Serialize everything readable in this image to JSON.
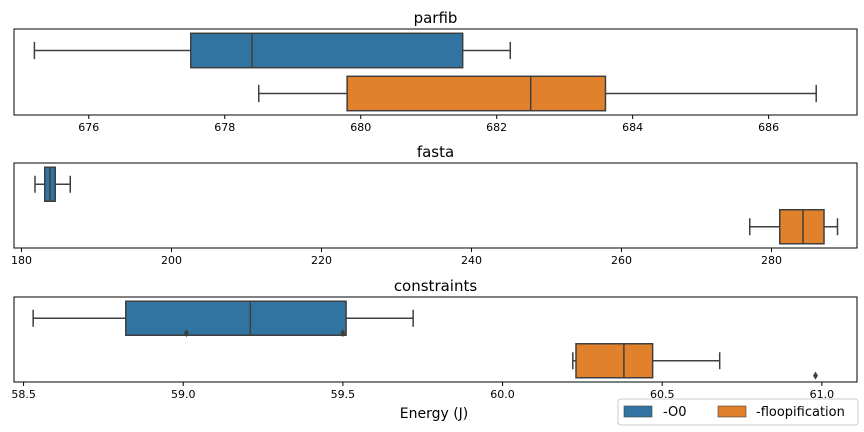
{
  "colors": {
    "series_0": "#3274a1",
    "series_1": "#e1812c",
    "line": "#3f3f3f",
    "frame": "#000000"
  },
  "chart_data": [
    {
      "type": "boxplot",
      "orientation": "horizontal",
      "title": "parfib",
      "xlim": [
        674.9,
        687.3
      ],
      "xticks": [
        676,
        678,
        680,
        682,
        684,
        686
      ],
      "xlabel": "",
      "boxes": [
        {
          "series": "-O0",
          "whislo": 675.2,
          "q1": 677.5,
          "med": 678.4,
          "q3": 681.5,
          "whishi": 682.2,
          "fliers": []
        },
        {
          "series": "-floopification",
          "whislo": 678.5,
          "q1": 679.8,
          "med": 682.5,
          "q3": 683.6,
          "whishi": 686.7,
          "fliers": []
        }
      ]
    },
    {
      "type": "boxplot",
      "orientation": "horizontal",
      "title": "fasta",
      "xlim": [
        179.0,
        291.4
      ],
      "xticks": [
        180,
        200,
        220,
        240,
        260,
        280
      ],
      "xlabel": "",
      "boxes": [
        {
          "series": "-O0",
          "whislo": 181.8,
          "q1": 183.1,
          "med": 183.8,
          "q3": 184.5,
          "whishi": 186.5,
          "fliers": []
        },
        {
          "series": "-floopification",
          "whislo": 277.1,
          "q1": 281.1,
          "med": 284.2,
          "q3": 287.0,
          "whishi": 288.8,
          "fliers": []
        }
      ]
    },
    {
      "type": "boxplot",
      "orientation": "horizontal",
      "title": "constraints",
      "xlim": [
        58.47,
        61.11
      ],
      "xticks": [
        58.5,
        59.0,
        59.5,
        60.0,
        60.5,
        61.0
      ],
      "xlabel": "Energy (J)",
      "boxes": [
        {
          "series": "-O0",
          "whislo": 58.53,
          "q1": 58.82,
          "med": 59.21,
          "q3": 59.51,
          "whishi": 59.72,
          "fliers": [
            59.01,
            59.5
          ]
        },
        {
          "series": "-floopification",
          "whislo": 60.22,
          "q1": 60.23,
          "med": 60.38,
          "q3": 60.47,
          "whishi": 60.68,
          "fliers": [
            60.98
          ]
        }
      ]
    }
  ],
  "legend": {
    "position": "bottom-right",
    "entries": [
      {
        "label": "-O0",
        "color": "#3274a1"
      },
      {
        "label": "-floopification",
        "color": "#e1812c"
      }
    ]
  }
}
